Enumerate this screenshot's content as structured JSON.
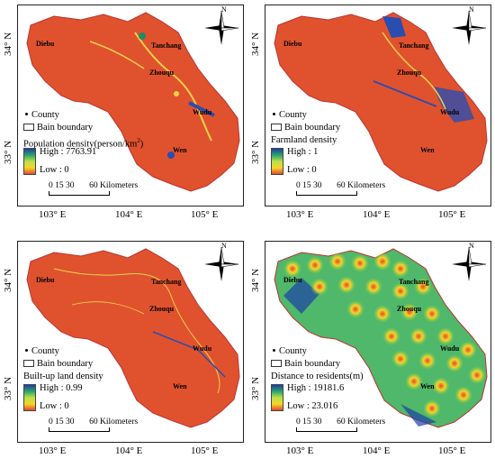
{
  "axes": {
    "x_ticks": [
      "103° E",
      "104° E",
      "105° E"
    ],
    "y_ticks": [
      "34° N",
      "33° N"
    ]
  },
  "north_label": "N",
  "scale_bar": {
    "numbers": "0  15 30",
    "end_label": "60 Kilometers"
  },
  "cities": [
    "Diebu",
    "Tanchang",
    "Zhouqu",
    "Wudu",
    "Wen"
  ],
  "legend_common": {
    "county": "County",
    "boundary": "Bain boundary"
  },
  "panels": [
    {
      "title": "Population density(person/km",
      "title_sup": "2",
      "title_end": ")",
      "high": "High : 7763.91",
      "low": "Low : 0",
      "fill": "#e0522e"
    },
    {
      "title": "Farmland density",
      "title_sup": "",
      "title_end": "",
      "high": "High : 1",
      "low": "Low : 0",
      "fill": "#e0522e"
    },
    {
      "title": "Built-up land density",
      "title_sup": "",
      "title_end": "",
      "high": "High : 0.99",
      "low": "Low : 0",
      "fill": "#e0522e"
    },
    {
      "title": "Distance to residents(m)",
      "title_sup": "",
      "title_end": "",
      "high": "High : 19181.6",
      "low": "Low : 23.016",
      "fill": "#7fd04a"
    }
  ]
}
